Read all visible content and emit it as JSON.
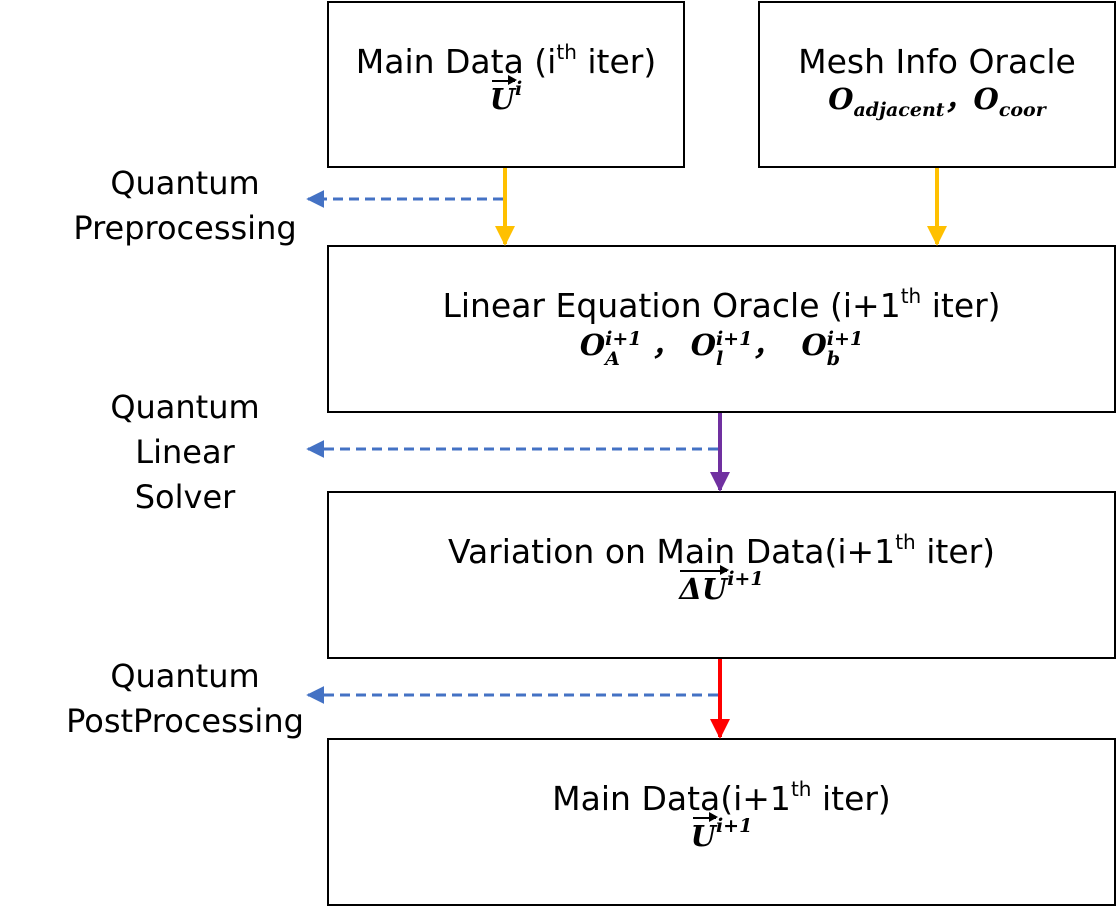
{
  "boxes": {
    "main_data_i": {
      "title_prefix": "Main Data (i",
      "title_sup": "th",
      "title_suffix": " iter)",
      "formula_base": "U",
      "formula_sup": "i"
    },
    "mesh_info": {
      "title": "Mesh Info Oracle",
      "formula_o1": "O",
      "formula_sub1": "adjacent",
      "formula_sep": "，",
      "formula_o2": "O",
      "formula_sub2": "coor"
    },
    "linear_equation": {
      "title_prefix": "Linear Equation Oracle (i+1",
      "title_sup": "th",
      "title_suffix": " iter)",
      "o": "O",
      "sup": "i+1",
      "sub_a": "A",
      "sub_l": "l",
      "sub_b": "b",
      "sep1": " ，",
      "sep2": "，"
    },
    "variation": {
      "title_prefix": "Variation on Main Data(i+1",
      "title_sup": "th",
      "title_suffix": " iter)",
      "formula_base": "ΔU",
      "formula_sup": "i+1"
    },
    "main_data_next": {
      "title_prefix": "Main Data(i+1",
      "title_sup": "th",
      "title_suffix": " iter)",
      "formula_base": "U",
      "formula_sup": "i+1"
    }
  },
  "side_labels": {
    "preprocessing": [
      "Quantum",
      "Preprocessing"
    ],
    "linear_solver": [
      "Quantum",
      "Linear",
      "Solver"
    ],
    "postprocessing": [
      "Quantum",
      "PostProcessing"
    ]
  },
  "colors": {
    "yellow_arrow": "#FFC000",
    "purple_arrow": "#7030A0",
    "red_arrow": "#FF0000",
    "dashed_arrow": "#4472C4"
  }
}
